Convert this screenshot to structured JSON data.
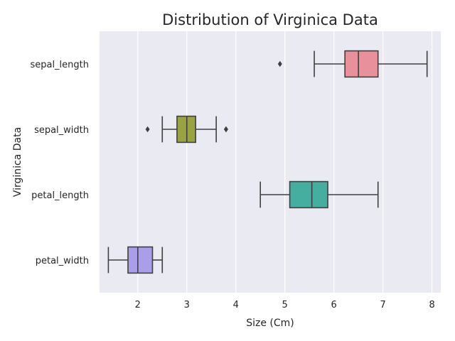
{
  "chart_data": {
    "type": "boxplot",
    "orientation": "horizontal",
    "title": "Distribution of Virginica Data",
    "xlabel": "Size (Cm)",
    "ylabel": "Virginica Data",
    "xlim": [
      1.22,
      8.18
    ],
    "xticks": [
      2,
      3,
      4,
      5,
      6,
      7,
      8
    ],
    "grid": true,
    "background": "#eaeaf2",
    "categories": [
      "sepal_length",
      "sepal_width",
      "petal_length",
      "petal_width"
    ],
    "series": [
      {
        "category": "sepal_length",
        "whisker_low": 5.6,
        "q1": 6.225,
        "median": 6.5,
        "q3": 6.9,
        "whisker_high": 7.9,
        "outliers": [
          4.9
        ],
        "color": "#e8919d"
      },
      {
        "category": "sepal_width",
        "whisker_low": 2.5,
        "q1": 2.8,
        "median": 3.0,
        "q3": 3.18,
        "whisker_high": 3.6,
        "outliers": [
          2.2,
          3.8,
          3.8
        ],
        "color": "#9aa341"
      },
      {
        "category": "petal_length",
        "whisker_low": 4.5,
        "q1": 5.1,
        "median": 5.55,
        "q3": 5.875,
        "whisker_high": 6.9,
        "outliers": [],
        "color": "#46aea0"
      },
      {
        "category": "petal_width",
        "whisker_low": 1.4,
        "q1": 1.8,
        "median": 2.0,
        "q3": 2.3,
        "whisker_high": 2.5,
        "outliers": [],
        "color": "#aa9de9"
      }
    ]
  }
}
